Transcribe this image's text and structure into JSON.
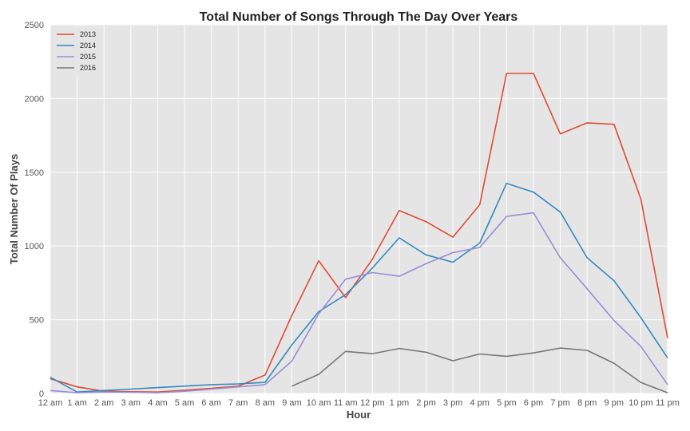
{
  "chart_data": {
    "type": "line",
    "title": "Total Number of Songs Through The Day Over Years",
    "xlabel": "Hour",
    "ylabel": "Total Number Of Plays",
    "categories": [
      "12 am",
      "1 am",
      "2 am",
      "3 am",
      "4 am",
      "5 am",
      "6 am",
      "7 am",
      "8 am",
      "9 am",
      "10 am",
      "11 am",
      "12 pm",
      "1 pm",
      "2 pm",
      "3 pm",
      "4 pm",
      "5 pm",
      "6 pm",
      "7 pm",
      "8 pm",
      "9 pm",
      "10 pm",
      "11 pm"
    ],
    "ylim": [
      0,
      2500
    ],
    "yticks": [
      0,
      500,
      1000,
      1500,
      2000,
      2500
    ],
    "grid": true,
    "legend_position": "top-left",
    "series": [
      {
        "name": "2013",
        "color": "#e24a33",
        "values": [
          100,
          45,
          15,
          12,
          10,
          22,
          35,
          50,
          125,
          530,
          900,
          650,
          910,
          1240,
          1165,
          1060,
          1280,
          2170,
          2170,
          1760,
          1835,
          1825,
          1320,
          375
        ]
      },
      {
        "name": "2014",
        "color": "#348abd",
        "values": [
          110,
          10,
          20,
          30,
          40,
          50,
          60,
          65,
          75,
          330,
          555,
          670,
          850,
          1055,
          940,
          890,
          1020,
          1425,
          1365,
          1230,
          920,
          765,
          515,
          240
        ]
      },
      {
        "name": "2015",
        "color": "#988ed5",
        "values": [
          20,
          5,
          10,
          8,
          5,
          15,
          30,
          45,
          60,
          220,
          540,
          775,
          820,
          795,
          880,
          955,
          990,
          1200,
          1225,
          920,
          710,
          495,
          320,
          60
        ]
      },
      {
        "name": "2016",
        "color": "#777777",
        "values": [
          null,
          null,
          null,
          null,
          null,
          null,
          null,
          null,
          null,
          50,
          130,
          285,
          270,
          305,
          280,
          222,
          268,
          252,
          275,
          308,
          292,
          205,
          75,
          5
        ]
      }
    ]
  }
}
